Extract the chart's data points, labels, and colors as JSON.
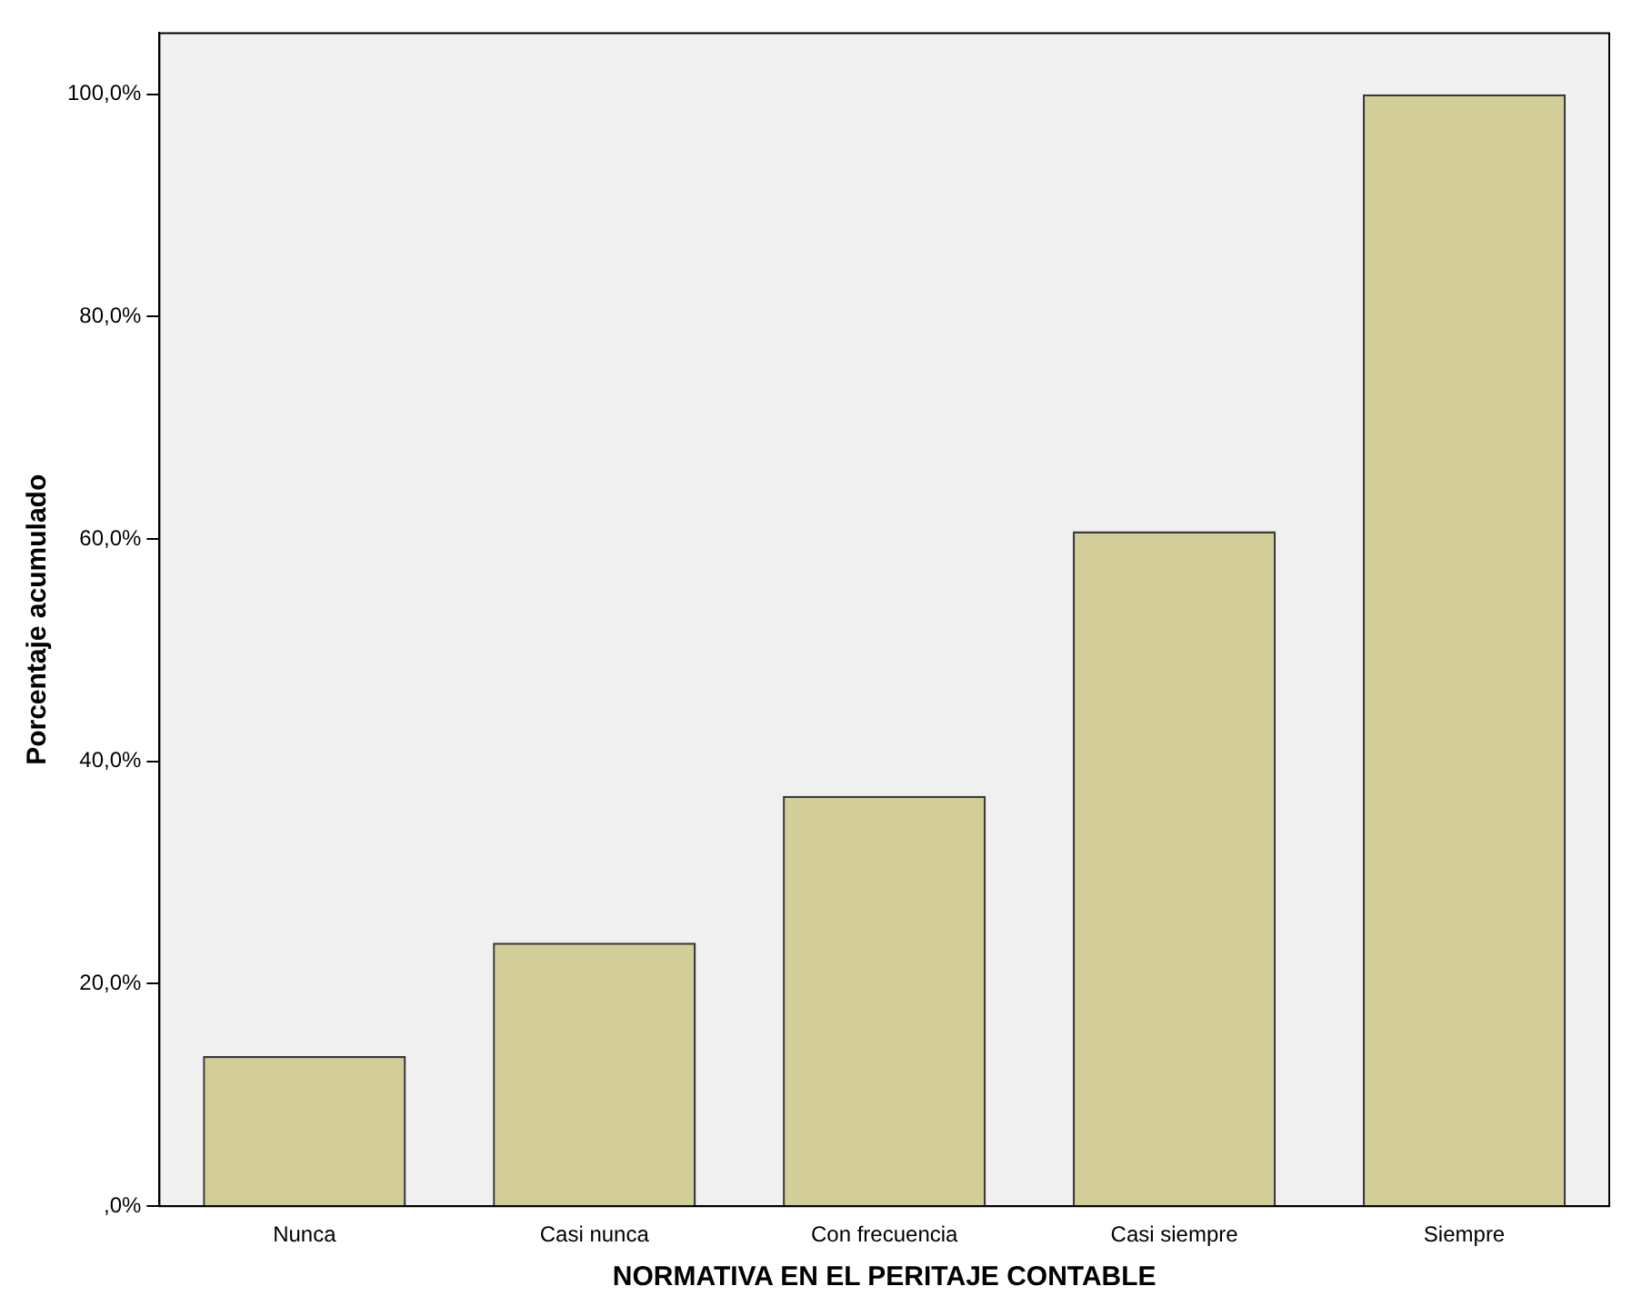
{
  "chart_data": {
    "type": "bar",
    "xlabel": "NORMATIVA EN EL PERITAJE CONTABLE",
    "ylabel": "Porcentaje acumulado",
    "categories": [
      "Nunca",
      "Casi nunca",
      "Con frecuencia",
      "Casi siempre",
      "Siempre"
    ],
    "values": [
      13.5,
      23.7,
      36.9,
      60.7,
      100
    ],
    "color": "#d3ce97",
    "ylim": [
      0,
      105.5
    ],
    "yticks": [
      {
        "value": 0,
        "label": ",0%"
      },
      {
        "value": 20,
        "label": "20,0%"
      },
      {
        "value": 40,
        "label": "40,0%"
      },
      {
        "value": 60,
        "label": "60,0%"
      },
      {
        "value": 80,
        "label": "80,0%"
      },
      {
        "value": 100,
        "label": "100,0%"
      }
    ],
    "grid": false
  }
}
